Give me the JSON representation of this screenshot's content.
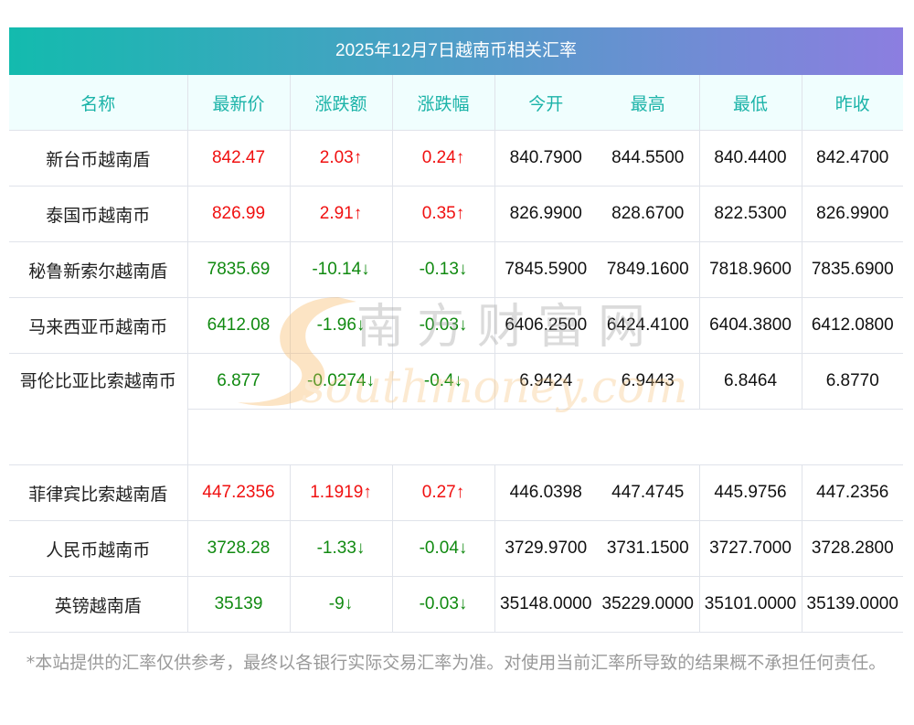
{
  "title": "2025年12月7日越南币相关汇率",
  "columns": [
    "名称",
    "最新价",
    "涨跌额",
    "涨跌幅",
    "今开",
    "最高",
    "最低",
    "昨收"
  ],
  "rows": [
    {
      "name": "新台币越南盾",
      "latest": "842.47",
      "change": "2.03↑",
      "pct": "0.24↑",
      "open": "840.7900",
      "high": "844.5500",
      "low": "840.4400",
      "prev": "842.4700",
      "dir": "up"
    },
    {
      "name": "泰国币越南币",
      "latest": "826.99",
      "change": "2.91↑",
      "pct": "0.35↑",
      "open": "826.9900",
      "high": "828.6700",
      "low": "822.5300",
      "prev": "826.9900",
      "dir": "up"
    },
    {
      "name": "秘鲁新索尔越南盾",
      "latest": "7835.69",
      "change": "-10.14↓",
      "pct": "-0.13↓",
      "open": "7845.5900",
      "high": "7849.1600",
      "low": "7818.9600",
      "prev": "7835.6900",
      "dir": "down"
    },
    {
      "name": "马来西亚币越南币",
      "latest": "6412.08",
      "change": "-1.96↓",
      "pct": "-0.03↓",
      "open": "6406.2500",
      "high": "6424.4100",
      "low": "6404.3800",
      "prev": "6412.0800",
      "dir": "down"
    },
    {
      "name": "哥伦比亚比索越南币",
      "latest": "6.877",
      "change": "-0.0274↓",
      "pct": "-0.4↓",
      "open": "6.9424",
      "high": "6.9443",
      "low": "6.8464",
      "prev": "6.8770",
      "dir": "down"
    },
    {
      "name": "菲律宾比索越南盾",
      "latest": "447.2356",
      "change": "1.1919↑",
      "pct": "0.27↑",
      "open": "446.0398",
      "high": "447.4745",
      "low": "445.9756",
      "prev": "447.2356",
      "dir": "up"
    },
    {
      "name": "人民币越南币",
      "latest": "3728.28",
      "change": "-1.33↓",
      "pct": "-0.04↓",
      "open": "3729.9700",
      "high": "3731.1500",
      "low": "3727.7000",
      "prev": "3728.2800",
      "dir": "down"
    },
    {
      "name": "英镑越南盾",
      "latest": "35139",
      "change": "-9↓",
      "pct": "-0.03↓",
      "open": "35148.0000",
      "high": "35229.0000",
      "low": "35101.0000",
      "prev": "35139.0000",
      "dir": "down"
    }
  ],
  "watermark": "南方财富网 southmoney.com",
  "note": "*本站提供的汇率仅供参考，最终以各银行实际交易汇率为准。对使用当前汇率所导致的结果概不承担任何责任。",
  "colors": {
    "up": "#f01010",
    "down": "#118a11",
    "header": "#1bb3a8"
  }
}
